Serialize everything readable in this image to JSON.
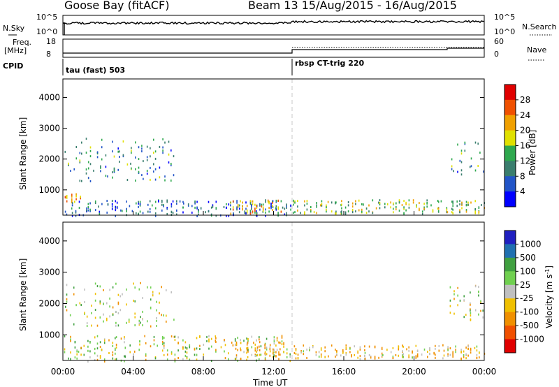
{
  "header": {
    "station": "Goose Bay (fitACF)",
    "beam_dates": "Beam 13 15/Aug/2015 - 16/Aug/2015"
  },
  "strip_labels": {
    "nsky": "N.Sky",
    "nsky_top": "10^5",
    "nsky_bottom": "10^0",
    "nsearch": "N.Search",
    "nsearch_top": "10^5",
    "nsearch_bottom": "10^0",
    "freq": "Freq.",
    "freq_unit": "[MHz]",
    "freq_top": "18",
    "freq_bottom": "8",
    "nave": "Nave",
    "nave_top": "60",
    "nave_bottom": "0",
    "cpid": "CPID",
    "cpid_seg1": "tau (fast) 503",
    "cpid_seg2": "rbsp CT-trig 220"
  },
  "xaxis": {
    "label": "Time UT",
    "ticks": [
      "00:00",
      "04:00",
      "08:00",
      "12:00",
      "16:00",
      "20:00",
      "00:00"
    ]
  },
  "yaxis": {
    "label": "Slant Range [km]",
    "ticks": [
      "1000",
      "2000",
      "3000",
      "4000"
    ]
  },
  "power_colorbar": {
    "label": "Power [dB]",
    "ticks": [
      "4",
      "8",
      "12",
      "16",
      "20",
      "24",
      "28"
    ],
    "colors": [
      "#0000ff",
      "#2255c8",
      "#3a7e6e",
      "#2ea84e",
      "#e0e000",
      "#f0a000",
      "#f05000",
      "#e00000"
    ]
  },
  "velocity_colorbar": {
    "label": "Velocity [m s^-1]",
    "ticks": [
      "1000",
      "500",
      "100",
      "25",
      "-25",
      "-100",
      "-500",
      "-1000"
    ],
    "colors": [
      "#2020c0",
      "#2070b0",
      "#40a040",
      "#70d050",
      "#c0c0c0",
      "#f0c000",
      "#f09000",
      "#f05000",
      "#e00000"
    ]
  },
  "chart_data": [
    {
      "type": "heatmap",
      "title": "",
      "xlabel": "Time UT",
      "ylabel": "Slant Range [km]",
      "xlim": [
        "00:00",
        "24:00"
      ],
      "ylim": [
        180,
        4600
      ],
      "colorbar_label": "Power [dB]",
      "colorbar_ticks": [
        4,
        8,
        12,
        16,
        20,
        24,
        28
      ],
      "regions": [
        {
          "t0": 0.0,
          "t1": 1.0,
          "r0": 600,
          "r1": 900,
          "power": 22
        },
        {
          "t0": 0.0,
          "t1": 6.3,
          "r0": 1300,
          "r1": 2700,
          "power": 10
        },
        {
          "t0": 0.0,
          "t1": 13.0,
          "r0": 180,
          "r1": 700,
          "power": 8
        },
        {
          "t0": 9.5,
          "t1": 12.5,
          "r0": 250,
          "r1": 700,
          "power": 20
        },
        {
          "t0": 13.0,
          "t1": 24.0,
          "r0": 250,
          "r1": 700,
          "power": 16
        },
        {
          "t0": 22.0,
          "t1": 24.0,
          "r0": 1500,
          "r1": 2600,
          "power": 10
        }
      ]
    },
    {
      "type": "heatmap",
      "title": "",
      "xlabel": "Time UT",
      "ylabel": "Slant Range [km]",
      "xlim": [
        "00:00",
        "24:00"
      ],
      "ylim": [
        180,
        4600
      ],
      "colorbar_label": "Velocity [m s^-1]",
      "colorbar_ticks": [
        1000,
        500,
        100,
        25,
        -25,
        -100,
        -500,
        -1000
      ],
      "regions": [
        {
          "t0": 0.0,
          "t1": 6.3,
          "r0": 1300,
          "r1": 2700,
          "velocity": 0
        },
        {
          "t0": 0.0,
          "t1": 13.0,
          "r0": 180,
          "r1": 1000,
          "velocity": 0
        },
        {
          "t0": 9.5,
          "t1": 12.5,
          "r0": 250,
          "r1": 800,
          "velocity": -150
        },
        {
          "t0": 13.0,
          "t1": 24.0,
          "r0": 250,
          "r1": 700,
          "velocity": -100
        },
        {
          "t0": 22.0,
          "t1": 24.0,
          "r0": 1500,
          "r1": 2600,
          "velocity": 0
        }
      ]
    }
  ]
}
